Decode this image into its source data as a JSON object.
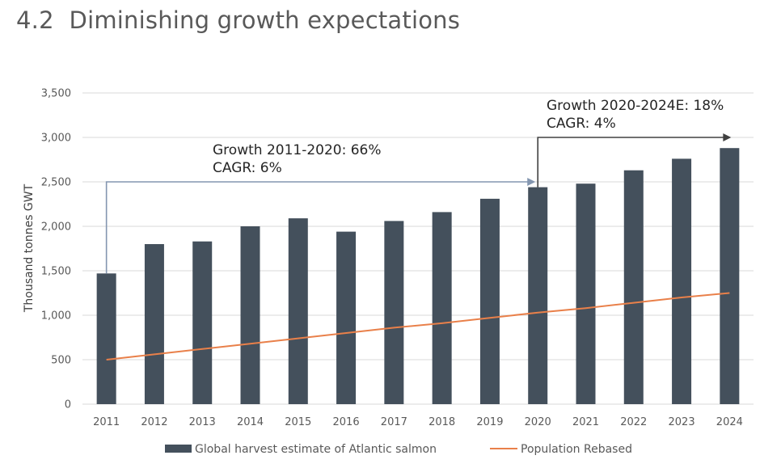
{
  "page": {
    "title": "4.2  Diminishing growth expectations"
  },
  "chart_data": {
    "type": "bar",
    "categories": [
      "2011",
      "2012",
      "2013",
      "2014",
      "2015",
      "2016",
      "2017",
      "2018",
      "2019",
      "2020",
      "2021",
      "2022",
      "2023",
      "2024"
    ],
    "series": [
      {
        "name": "Global harvest estimate of Atlantic salmon",
        "kind": "bar",
        "color": "#44505c",
        "values": [
          1470,
          1800,
          1830,
          2000,
          2090,
          1940,
          2060,
          2160,
          2310,
          2440,
          2480,
          2630,
          2760,
          2880
        ]
      },
      {
        "name": "Population Rebased",
        "kind": "line",
        "color": "#e9804a",
        "values": [
          500,
          560,
          620,
          680,
          740,
          800,
          860,
          910,
          970,
          1030,
          1080,
          1140,
          1200,
          1250
        ]
      }
    ],
    "ylabel": "Thousand tonnes GWT",
    "xlabel": "",
    "ylim": [
      0,
      3500
    ],
    "yticks": [
      0,
      500,
      1000,
      1500,
      2000,
      2500,
      3000,
      3500
    ],
    "ytick_labels": [
      "0",
      "500",
      "1,000",
      "1,500",
      "2,000",
      "2,500",
      "3,000",
      "3,500"
    ],
    "grid": true,
    "legend_position": "bottom",
    "annotations": [
      {
        "lines": [
          "Growth 2011-2020: 66%",
          "CAGR: 6%"
        ],
        "from": "2011",
        "to": "2020",
        "level": 2500,
        "arrow_color": "#8496b0"
      },
      {
        "lines": [
          "Growth 2020-2024E: 18%",
          "CAGR: 4%"
        ],
        "from": "2020",
        "to": "2024",
        "level": 3000,
        "arrow_color": "#404040"
      }
    ]
  }
}
